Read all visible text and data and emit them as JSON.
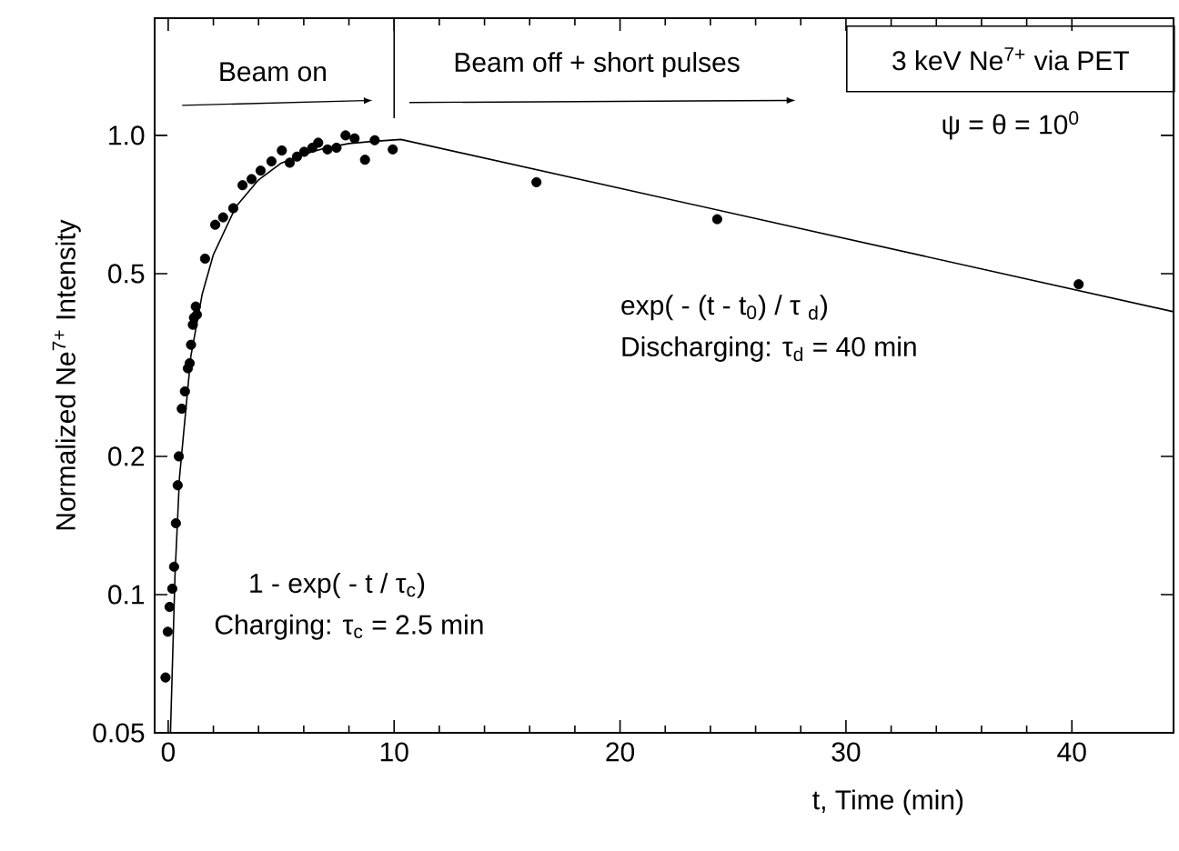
{
  "chart_data": {
    "type": "scatter",
    "xlabel": "t,  Time (min)",
    "ylabel": "Normalized Ne$^{7+}$ Intensity",
    "xlim": [
      -0.6,
      44.5
    ],
    "ylim": [
      0.05,
      1.8
    ],
    "log": "y",
    "xticks": [
      0,
      10,
      20,
      30,
      40
    ],
    "yticks": [
      0.05,
      0.1,
      0.2,
      0.5,
      {
        "value": 1,
        "label": "1.0"
      }
    ],
    "grid": false,
    "series": [
      {
        "color": "#000000",
        "marker": "circle",
        "x": [
          -0.12,
          -0.02,
          0.06,
          0.18,
          0.26,
          0.34,
          0.42,
          0.47,
          0.6,
          0.74,
          0.87,
          0.95,
          1.01,
          1.09,
          1.14,
          1.22,
          1.27,
          1.63,
          2.08,
          2.43,
          2.88,
          3.29,
          3.69,
          4.09,
          4.57,
          5.03,
          5.38,
          5.7,
          6.02,
          6.38,
          6.64,
          7.05,
          7.45,
          7.85,
          8.25,
          8.71,
          9.14,
          9.94,
          16.3,
          24.3,
          40.3
        ],
        "values": [
          0.066,
          0.083,
          0.094,
          0.103,
          0.115,
          0.143,
          0.173,
          0.2,
          0.254,
          0.277,
          0.311,
          0.319,
          0.35,
          0.387,
          0.401,
          0.424,
          0.407,
          0.539,
          0.639,
          0.663,
          0.694,
          0.779,
          0.803,
          0.838,
          0.878,
          0.927,
          0.872,
          0.899,
          0.921,
          0.94,
          0.964,
          0.932,
          0.94,
          1.0,
          0.985,
          0.885,
          0.976,
          0.932,
          0.791,
          0.657,
          0.474
        ]
      },
      {
        "type": "line",
        "color": "#000000",
        "x": [
          0.1,
          0.3,
          0.5,
          1,
          1.5,
          2,
          3,
          4,
          5,
          6,
          7,
          8,
          9,
          10.3,
          44.5
        ],
        "values": [
          0.05,
          0.11,
          0.18,
          0.33,
          0.45,
          0.55,
          0.7,
          0.8,
          0.87,
          0.91,
          0.94,
          0.96,
          0.97,
          0.98,
          0.413
        ]
      }
    ],
    "ref_lines": [
      {
        "axis": "x",
        "value": 10
      }
    ],
    "annotations": [
      "Beam on",
      "Beam off + short pulses",
      "3 keV Ne$^{7+}$ via PET",
      "ψ = θ = 10$^{0}$",
      "exp( - (t - t$_{0}$) / τ $_{d}$)",
      "Discharging: τ$_{d}$ = 40 min",
      "1 - exp( - t / τ$_{c}$)",
      "Charging: τ$_{c}$ = 2.5 min"
    ]
  }
}
